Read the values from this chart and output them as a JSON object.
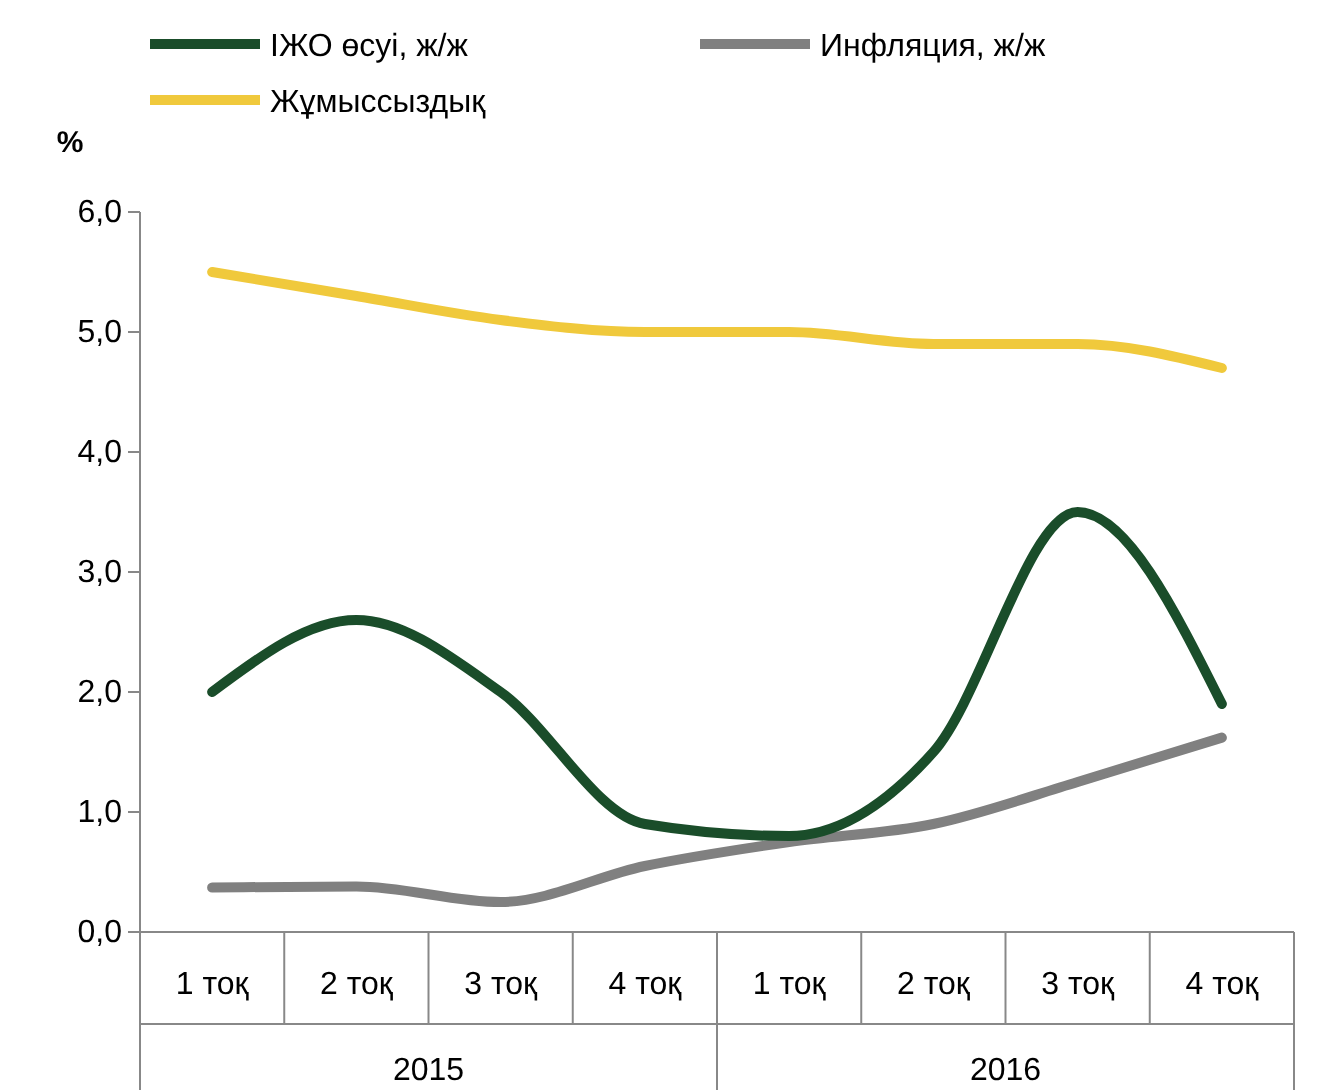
{
  "chart_data": {
    "type": "line",
    "ylabel": "%",
    "categories": [
      "1 тоқ",
      "2 тоқ",
      "3 тоқ",
      "4 тоқ",
      "1 тоқ",
      "2 тоқ",
      "3 тоқ",
      "4 тоқ"
    ],
    "annotations": [
      "2015",
      "2016"
    ],
    "series": [
      {
        "name": "ІЖО өсуі, ж/ж",
        "color": "#1a4d2a",
        "values": [
          2.0,
          2.6,
          2.0,
          0.9,
          0.8,
          1.5,
          3.5,
          1.9
        ]
      },
      {
        "name": "Инфляция, ж/ж",
        "color": "#808080",
        "values": [
          0.37,
          0.38,
          0.25,
          0.55,
          0.75,
          0.9,
          1.25,
          1.62
        ]
      },
      {
        "name": "Жұмыссыздық",
        "color": "#f0c93c",
        "values": [
          5.5,
          5.3,
          5.1,
          5.0,
          5.0,
          4.9,
          4.9,
          4.7
        ]
      }
    ],
    "ylim": [
      0,
      6
    ],
    "yticks": [
      {
        "value": 0,
        "label": "0,0"
      },
      {
        "value": 1,
        "label": "1,0"
      },
      {
        "value": 2,
        "label": "2,0"
      },
      {
        "value": 3,
        "label": "3,0"
      },
      {
        "value": 4,
        "label": "4,0"
      },
      {
        "value": 5,
        "label": "5,0"
      },
      {
        "value": 6,
        "label": "6,0"
      }
    ],
    "legend": "top",
    "grid": false,
    "marker": "none",
    "line_style": "solid"
  }
}
